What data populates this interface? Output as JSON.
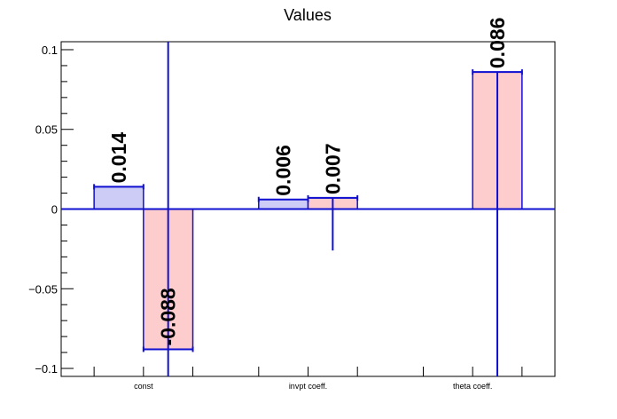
{
  "chart_data": {
    "type": "bar",
    "title": "Values",
    "xlabel": "",
    "ylabel": "",
    "categories": [
      "const",
      "invpt coeff.",
      "theta coeff."
    ],
    "ylim": [
      -0.105,
      0.105
    ],
    "yticks": [
      -0.1,
      -0.05,
      0,
      0.05,
      0.1
    ],
    "ytick_labels": [
      "−0.1",
      "−0.05",
      "0",
      "0.05",
      "0.1"
    ],
    "grid": false,
    "colors": {
      "series1_fill": "#ccccf6",
      "series2_fill": "#fdcccc",
      "outline": "#1010d0",
      "error": "#1010d0"
    },
    "series": [
      {
        "values": [
          0.014,
          0.006,
          null
        ],
        "labels": [
          "0.014",
          "0.006",
          ""
        ],
        "errors": [
          null,
          null,
          null
        ]
      },
      {
        "values": [
          -0.088,
          0.007,
          0.086
        ],
        "labels": [
          "-0.088",
          "0.007",
          "0.086"
        ],
        "errors": [
          [
            -0.105,
            0.105
          ],
          [
            -0.026,
            0.007
          ],
          [
            -0.105,
            0.086
          ]
        ]
      }
    ]
  }
}
